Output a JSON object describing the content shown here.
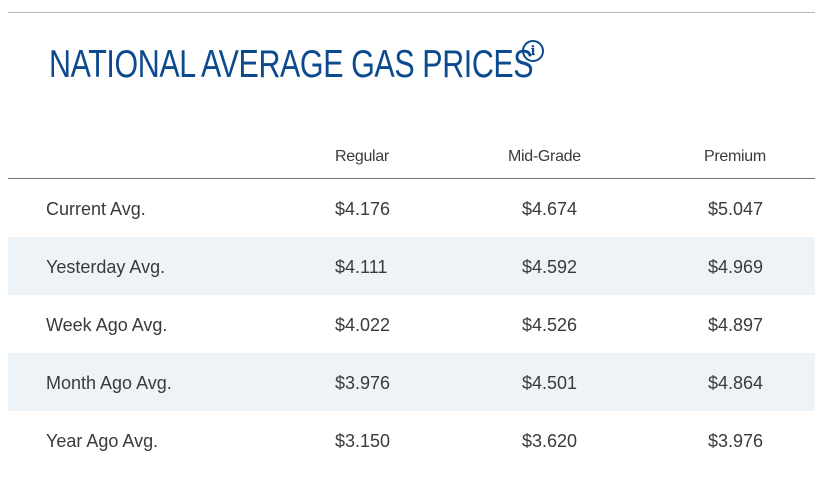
{
  "header": {
    "title": "NATIONAL AVERAGE GAS PRICES",
    "info_icon": "info-circle-icon",
    "title_color": "#0c4a8f"
  },
  "table": {
    "columns": [
      "",
      "Regular",
      "Mid-Grade",
      "Premium"
    ],
    "rows": [
      {
        "label": "Current Avg.",
        "regular": "$4.176",
        "mid_grade": "$4.674",
        "premium": "$5.047"
      },
      {
        "label": "Yesterday Avg.",
        "regular": "$4.111",
        "mid_grade": "$4.592",
        "premium": "$4.969"
      },
      {
        "label": "Week Ago Avg.",
        "regular": "$4.022",
        "mid_grade": "$4.526",
        "premium": "$4.897"
      },
      {
        "label": "Month Ago Avg.",
        "regular": "$3.976",
        "mid_grade": "$4.501",
        "premium": "$4.864"
      },
      {
        "label": "Year Ago Avg.",
        "regular": "$3.150",
        "mid_grade": "$3.620",
        "premium": "$3.976"
      }
    ],
    "shaded_row_color": "#eef3f8"
  }
}
